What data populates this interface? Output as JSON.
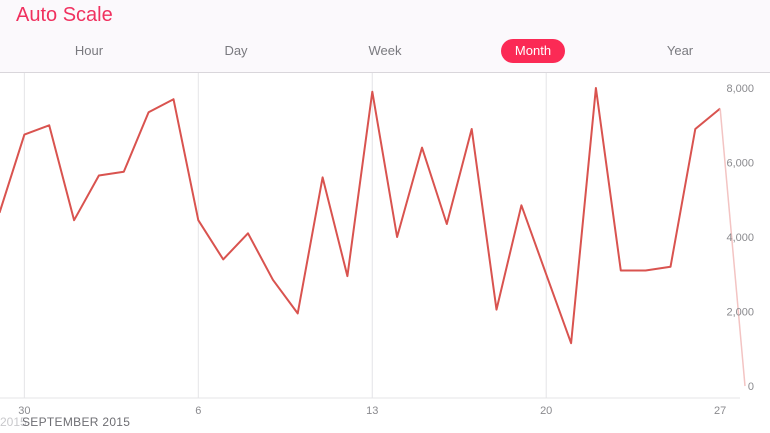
{
  "header": {
    "title": "Auto Scale",
    "segments": [
      {
        "label": "Hour",
        "active": false
      },
      {
        "label": "Day",
        "active": false
      },
      {
        "label": "Week",
        "active": false
      },
      {
        "label": "Month",
        "active": true
      },
      {
        "label": "Year",
        "active": false
      }
    ],
    "accent_color": "#fb2a55"
  },
  "chart_data": {
    "type": "line",
    "title": "",
    "xlabel": "SEPTEMBER 2015",
    "ylabel": "",
    "x_tick_labels": [
      "30",
      "6",
      "13",
      "20",
      "27"
    ],
    "y_tick_labels": [
      "8,000",
      "6,000",
      "4,000",
      "2,000",
      "0"
    ],
    "ylim": [
      0,
      8000
    ],
    "grid": "vertical lines at x ticks",
    "line_color": "#d9534f",
    "series": [
      {
        "x": [
          "Aug 29",
          "Aug 30",
          "Aug 31",
          "Sep 1",
          "Sep 2",
          "Sep 3",
          "Sep 4",
          "Sep 5",
          "Sep 6",
          "Sep 7",
          "Sep 8",
          "Sep 9",
          "Sep 10",
          "Sep 11",
          "Sep 12",
          "Sep 13",
          "Sep 14",
          "Sep 15",
          "Sep 16",
          "Sep 17",
          "Sep 18",
          "Sep 19",
          "Sep 20",
          "Sep 21",
          "Sep 22",
          "Sep 23",
          "Sep 24",
          "Sep 25",
          "Sep 26",
          "Sep 27",
          "Sep 28"
        ],
        "values": [
          4650,
          6750,
          7000,
          4450,
          5650,
          5750,
          7350,
          7700,
          4450,
          3400,
          4100,
          2850,
          1950,
          5600,
          2950,
          7900,
          4000,
          6400,
          4350,
          6900,
          2050,
          4850,
          3000,
          1150,
          8000,
          3100,
          3100,
          3200,
          6900,
          7450,
          0
        ]
      }
    ],
    "secondary_labels": [
      "2015"
    ]
  }
}
